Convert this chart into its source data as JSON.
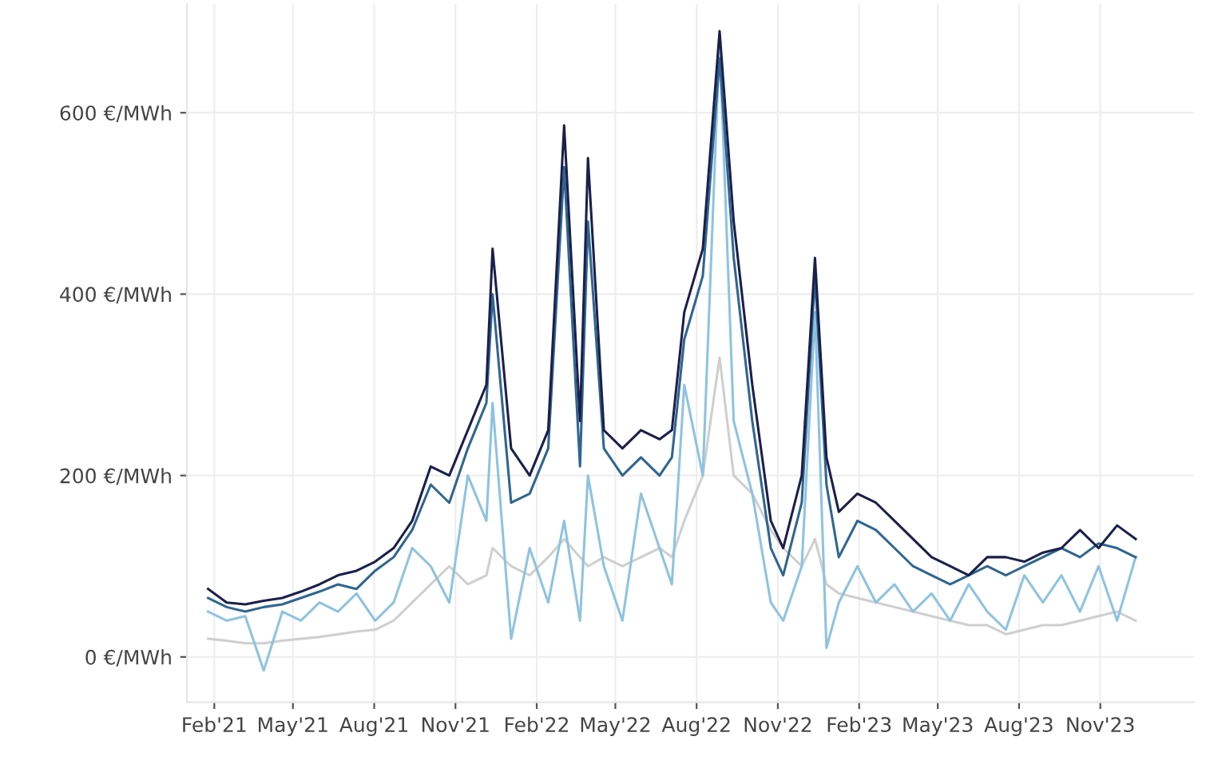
{
  "chart_data": {
    "type": "line",
    "x": [
      "2021-01-25",
      "2021-02-15",
      "2021-03-08",
      "2021-03-29",
      "2021-04-19",
      "2021-05-10",
      "2021-05-31",
      "2021-06-21",
      "2021-07-12",
      "2021-08-02",
      "2021-08-23",
      "2021-09-13",
      "2021-10-04",
      "2021-10-25",
      "2021-11-15",
      "2021-12-06",
      "2021-12-13",
      "2022-01-03",
      "2022-01-24",
      "2022-02-14",
      "2022-03-04",
      "2022-03-22",
      "2022-03-31",
      "2022-04-18",
      "2022-05-09",
      "2022-05-30",
      "2022-06-20",
      "2022-07-04",
      "2022-07-18",
      "2022-08-08",
      "2022-08-27",
      "2022-09-12",
      "2022-10-03",
      "2022-10-24",
      "2022-11-07",
      "2022-11-28",
      "2022-12-13",
      "2022-12-26",
      "2023-01-09",
      "2023-01-30",
      "2023-02-20",
      "2023-03-13",
      "2023-04-03",
      "2023-04-24",
      "2023-05-15",
      "2023-06-05",
      "2023-06-26",
      "2023-07-17",
      "2023-08-07",
      "2023-08-28",
      "2023-09-18",
      "2023-10-09",
      "2023-10-30",
      "2023-11-20",
      "2023-12-11"
    ],
    "series": [
      {
        "color": "#cfcfcf",
        "values": [
          20,
          18,
          15,
          15,
          18,
          20,
          22,
          25,
          28,
          30,
          40,
          60,
          80,
          100,
          80,
          90,
          120,
          100,
          90,
          110,
          130,
          110,
          100,
          110,
          100,
          110,
          120,
          110,
          150,
          200,
          330,
          200,
          180,
          140,
          120,
          100,
          130,
          80,
          70,
          65,
          60,
          55,
          50,
          45,
          40,
          35,
          35,
          25,
          30,
          35,
          35,
          40,
          45,
          50,
          40
        ]
      },
      {
        "color": "#8ec3e0",
        "values": [
          50,
          40,
          45,
          -15,
          50,
          40,
          60,
          50,
          70,
          40,
          60,
          120,
          100,
          60,
          200,
          150,
          280,
          20,
          120,
          60,
          150,
          40,
          200,
          100,
          40,
          180,
          120,
          80,
          300,
          200,
          680,
          260,
          180,
          60,
          40,
          100,
          380,
          10,
          60,
          100,
          60,
          80,
          50,
          70,
          40,
          80,
          50,
          30,
          90,
          60,
          90,
          50,
          100,
          40,
          110
        ]
      },
      {
        "color": "#2f6690",
        "values": [
          65,
          55,
          50,
          55,
          58,
          65,
          72,
          80,
          75,
          95,
          110,
          140,
          190,
          170,
          230,
          280,
          400,
          170,
          180,
          230,
          540,
          210,
          480,
          230,
          200,
          220,
          200,
          220,
          350,
          420,
          660,
          440,
          260,
          120,
          90,
          170,
          420,
          190,
          110,
          150,
          140,
          120,
          100,
          90,
          80,
          90,
          100,
          90,
          100,
          110,
          120,
          110,
          125,
          120,
          110
        ]
      },
      {
        "color": "#1b1f4b",
        "values": [
          75,
          60,
          58,
          62,
          65,
          72,
          80,
          90,
          95,
          105,
          120,
          150,
          210,
          200,
          250,
          300,
          450,
          230,
          200,
          250,
          586,
          260,
          550,
          250,
          230,
          250,
          240,
          250,
          380,
          450,
          690,
          480,
          300,
          150,
          120,
          200,
          440,
          220,
          160,
          180,
          170,
          150,
          130,
          110,
          100,
          90,
          110,
          110,
          105,
          115,
          120,
          140,
          120,
          145,
          130
        ]
      }
    ],
    "xlim": [
      "2021-01-01",
      "2024-02-15"
    ],
    "xticks": [
      {
        "value": "2021-02-01",
        "label": "Feb'21"
      },
      {
        "value": "2021-05-01",
        "label": "May'21"
      },
      {
        "value": "2021-08-01",
        "label": "Aug'21"
      },
      {
        "value": "2021-11-01",
        "label": "Nov'21"
      },
      {
        "value": "2022-02-01",
        "label": "Feb'22"
      },
      {
        "value": "2022-05-01",
        "label": "May'22"
      },
      {
        "value": "2022-08-01",
        "label": "Aug'22"
      },
      {
        "value": "2022-11-01",
        "label": "Nov'22"
      },
      {
        "value": "2023-02-01",
        "label": "Feb'23"
      },
      {
        "value": "2023-05-01",
        "label": "May'23"
      },
      {
        "value": "2023-08-01",
        "label": "Aug'23"
      },
      {
        "value": "2023-11-01",
        "label": "Nov'23"
      }
    ],
    "ylim": [
      -50,
      720
    ],
    "yticks": [
      {
        "value": 0,
        "label": "0 €/MWh"
      },
      {
        "value": 200,
        "label": "200 €/MWh"
      },
      {
        "value": 400,
        "label": "400 €/MWh"
      },
      {
        "value": 600,
        "label": "600 €/MWh"
      }
    ],
    "grid": true,
    "marker": "none",
    "line_style": "solid"
  }
}
